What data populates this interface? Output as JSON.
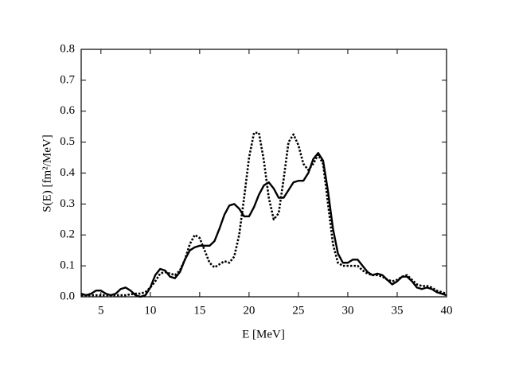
{
  "chart_data": {
    "type": "line",
    "xlabel": "E [MeV]",
    "ylabel": "S(E) [fm²/MeV]",
    "x": [
      3,
      3.5,
      4,
      4.5,
      5,
      5.5,
      6,
      6.5,
      7,
      7.5,
      8,
      8.5,
      9,
      9.5,
      10,
      10.5,
      11,
      11.5,
      12,
      12.5,
      13,
      13.5,
      14,
      14.5,
      15,
      15.5,
      16,
      16.5,
      17,
      17.5,
      18,
      18.5,
      19,
      19.5,
      20,
      20.5,
      21,
      21.5,
      22,
      22.5,
      23,
      23.5,
      24,
      24.5,
      25,
      25.5,
      26,
      26.5,
      27,
      27.5,
      28,
      28.5,
      29,
      29.5,
      30,
      30.5,
      31,
      31.5,
      32,
      32.5,
      33,
      33.5,
      34,
      34.5,
      35,
      35.5,
      36,
      36.5,
      37,
      37.5,
      38,
      38.5,
      39,
      39.5,
      40
    ],
    "series": [
      {
        "color": "#000000",
        "line_style": "solid",
        "values": [
          0.01,
          0.005,
          0.01,
          0.02,
          0.02,
          0.01,
          0.005,
          0.01,
          0.025,
          0.03,
          0.02,
          0.005,
          0.0,
          0.005,
          0.03,
          0.07,
          0.09,
          0.085,
          0.065,
          0.06,
          0.08,
          0.12,
          0.15,
          0.16,
          0.165,
          0.165,
          0.165,
          0.18,
          0.22,
          0.265,
          0.295,
          0.3,
          0.285,
          0.26,
          0.26,
          0.29,
          0.33,
          0.36,
          0.37,
          0.35,
          0.32,
          0.32,
          0.345,
          0.37,
          0.375,
          0.375,
          0.4,
          0.445,
          0.465,
          0.44,
          0.34,
          0.22,
          0.14,
          0.11,
          0.11,
          0.12,
          0.12,
          0.1,
          0.08,
          0.07,
          0.075,
          0.07,
          0.055,
          0.04,
          0.05,
          0.065,
          0.065,
          0.05,
          0.03,
          0.025,
          0.03,
          0.025,
          0.015,
          0.01,
          0.005
        ]
      },
      {
        "color": "#000000",
        "line_style": "dotted",
        "values": [
          0.005,
          0.005,
          0.005,
          0.005,
          0.005,
          0.005,
          0.005,
          0.005,
          0.005,
          0.005,
          0.008,
          0.01,
          0.01,
          0.015,
          0.03,
          0.05,
          0.075,
          0.08,
          0.075,
          0.07,
          0.085,
          0.12,
          0.17,
          0.2,
          0.19,
          0.15,
          0.11,
          0.095,
          0.105,
          0.115,
          0.11,
          0.13,
          0.2,
          0.32,
          0.45,
          0.53,
          0.53,
          0.44,
          0.32,
          0.25,
          0.27,
          0.38,
          0.5,
          0.525,
          0.49,
          0.43,
          0.41,
          0.43,
          0.46,
          0.43,
          0.3,
          0.17,
          0.11,
          0.1,
          0.1,
          0.1,
          0.1,
          0.085,
          0.075,
          0.07,
          0.07,
          0.065,
          0.055,
          0.05,
          0.055,
          0.065,
          0.07,
          0.055,
          0.04,
          0.035,
          0.035,
          0.03,
          0.02,
          0.015,
          0.01
        ]
      }
    ],
    "xlim": [
      3,
      40
    ],
    "xticks": [
      5,
      10,
      15,
      20,
      25,
      30,
      35,
      40
    ],
    "ylim": [
      0,
      0.8
    ],
    "yticks": [
      {
        "value": 0,
        "label": "0.0"
      },
      0.1,
      0.2,
      0.3,
      0.4,
      0.5,
      0.6,
      0.7,
      0.8
    ],
    "grid": false
  }
}
